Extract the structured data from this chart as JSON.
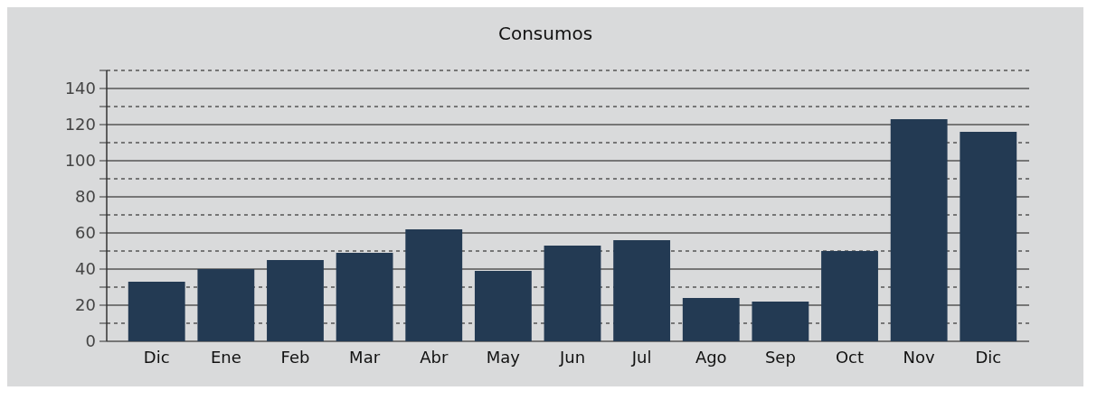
{
  "chart_data": {
    "type": "bar",
    "title": "Consumos",
    "categories": [
      "Dic",
      "Ene",
      "Feb",
      "Mar",
      "Abr",
      "May",
      "Jun",
      "Jul",
      "Ago",
      "Sep",
      "Oct",
      "Nov",
      "Dic"
    ],
    "values": [
      33,
      40,
      45,
      49,
      62,
      39,
      53,
      56,
      24,
      22,
      50,
      123,
      116
    ],
    "color": "#233a53",
    "ylim": [
      0,
      150
    ],
    "yticks": [
      0,
      {
        "value": 10,
        "label": null
      },
      20,
      {
        "value": 30,
        "label": null
      },
      40,
      {
        "value": 50,
        "label": null
      },
      60,
      {
        "value": 70,
        "label": null
      },
      80,
      {
        "value": 90,
        "label": null
      },
      100,
      {
        "value": 110,
        "label": null
      },
      120,
      {
        "value": 130,
        "label": null
      },
      140,
      {
        "value": 150,
        "label": null
      }
    ],
    "grid": true
  }
}
